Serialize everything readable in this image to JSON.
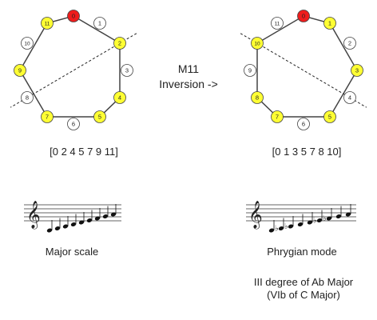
{
  "operation": {
    "title": "M11",
    "subtitle": "Inversion ->"
  },
  "left_diagram": {
    "set_label": "[0 2 4 5 7 9 11]",
    "scale_name": "Major scale",
    "pitch_classes": [
      "0",
      "1",
      "2",
      "3",
      "4",
      "5",
      "6",
      "7",
      "8",
      "9",
      "10",
      "11"
    ],
    "highlighted": [
      "2",
      "4",
      "5",
      "7",
      "9",
      "11"
    ],
    "root": "0",
    "axis": [
      "2",
      "8"
    ]
  },
  "right_diagram": {
    "set_label": "[0 1 3 5 7 8 10]",
    "scale_name": "Phrygian mode",
    "note_line_1": "III degree of Ab Major",
    "note_line_2": "(VIb of C Major)",
    "pitch_classes": [
      "0",
      "1",
      "2",
      "3",
      "4",
      "5",
      "6",
      "7",
      "8",
      "9",
      "10",
      "11"
    ],
    "highlighted": [
      "1",
      "3",
      "5",
      "7",
      "8",
      "10"
    ],
    "root": "0",
    "axis": [
      "10",
      "4"
    ]
  },
  "colors": {
    "root": "#ee1c1c",
    "member": "#ffff33",
    "non_member": "#ffffff",
    "outline": "#444444"
  },
  "icons": {
    "clef": "treble-clef-icon",
    "flat": "flat-sign-icon"
  }
}
